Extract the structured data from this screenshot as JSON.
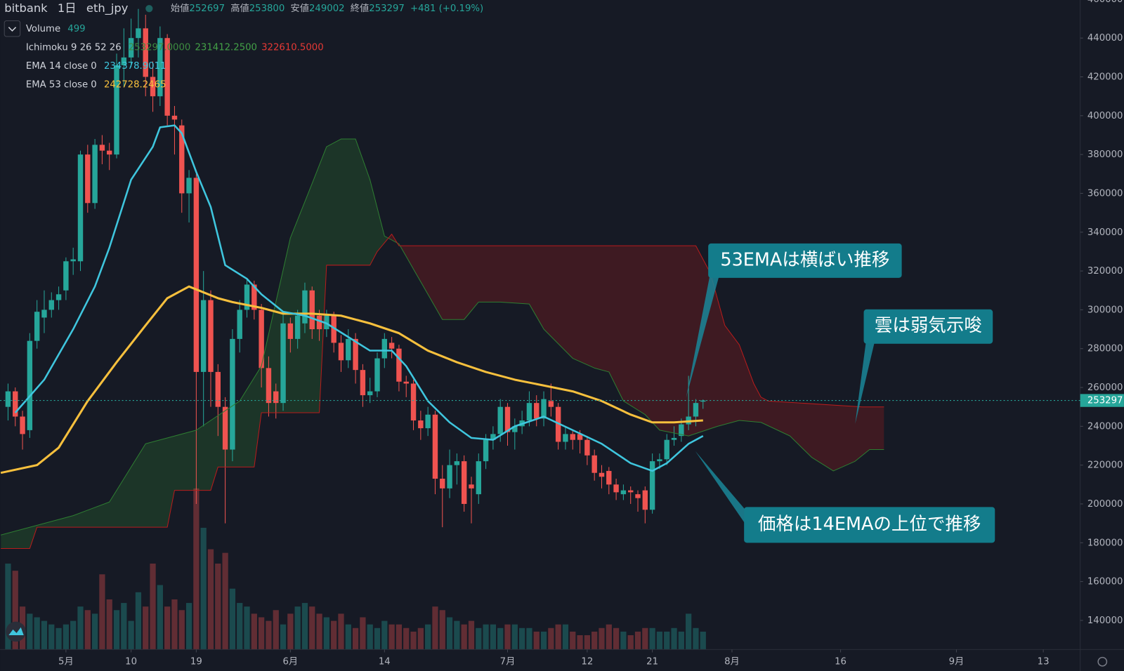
{
  "chart_data": {
    "type": "candlestick",
    "header": {
      "symbol": "bitbank",
      "interval": "1日",
      "pair": "eth_jpy",
      "open_label": "始値",
      "high_label": "高値",
      "low_label": "安値",
      "close_label": "終値",
      "change": "+481 (+0.19%)"
    },
    "legend": {
      "volume": "Volume",
      "ichimoku": "Ichimoku 9 26 52 26",
      "ichimoku_values": [
        "253297.0000",
        "231412.2500",
        "322610.5000"
      ],
      "ema14": "EMA 14 close 0",
      "ema14_value": "234378.9011",
      "ema53": "EMA 53 close 0",
      "ema53_value": "242728.2465"
    },
    "categories": [
      null,
      null,
      null,
      null,
      null,
      null,
      null,
      null,
      null,
      null,
      null,
      null,
      null,
      null,
      null,
      null,
      null,
      null,
      null,
      null,
      null,
      null,
      null,
      null,
      null,
      null,
      null,
      null,
      null,
      null,
      null,
      null,
      null,
      null,
      null,
      null,
      null,
      null,
      null,
      null,
      null,
      null,
      null,
      null,
      null,
      null,
      null,
      null,
      null,
      null,
      null,
      null,
      null,
      null,
      null,
      null,
      null,
      null,
      null,
      null,
      null,
      null,
      null,
      null,
      null,
      null,
      null,
      null,
      null,
      null,
      null,
      null,
      null,
      null,
      null,
      null,
      null,
      null,
      null,
      null,
      null,
      null,
      null,
      null,
      null,
      null,
      null,
      null,
      null,
      null,
      null,
      null,
      null,
      null,
      null,
      null,
      null
    ],
    "open": [
      250000,
      258000,
      245000,
      238000,
      284000,
      296000,
      300000,
      305000,
      310000,
      325000,
      325000,
      380000,
      355000,
      385000,
      382000,
      380000,
      426000,
      430000,
      440000,
      445000,
      420000,
      410000,
      440000,
      400000,
      395000,
      360000,
      368000,
      268000,
      305000,
      268000,
      250000,
      228000,
      285000,
      300000,
      313000,
      300000,
      270000,
      258000,
      252000,
      293000,
      285000,
      293000,
      310000,
      297000,
      290000,
      297000,
      283000,
      274000,
      285000,
      269000,
      256000,
      258000,
      275000,
      283000,
      280000,
      263000,
      262000,
      243000,
      239000,
      246000,
      213000,
      208000,
      220000,
      222000,
      210000,
      205000,
      222000,
      233000,
      236000,
      250000,
      237000,
      240000,
      243000,
      252000,
      244000,
      253000,
      250000,
      232000,
      236000,
      236000,
      233000,
      225000,
      216000,
      217000,
      210000,
      205000,
      207000,
      205000,
      207000,
      197000,
      222000,
      223000,
      233000,
      235000,
      241000,
      245000,
      252697
    ],
    "high": [
      262000,
      260000,
      248000,
      288000,
      305000,
      310000,
      309000,
      312000,
      327000,
      332000,
      382000,
      385000,
      388000,
      390000,
      386000,
      432000,
      445000,
      450000,
      455000,
      452000,
      428000,
      446000,
      442000,
      405000,
      398000,
      372000,
      370000,
      320000,
      310000,
      272000,
      255000,
      290000,
      305000,
      316000,
      315000,
      303000,
      276000,
      262000,
      298000,
      296000,
      300000,
      314000,
      312000,
      300000,
      300000,
      299000,
      287000,
      290000,
      288000,
      272000,
      265000,
      278000,
      288000,
      286000,
      282000,
      266000,
      264000,
      248000,
      250000,
      248000,
      220000,
      228000,
      226000,
      225000,
      214000,
      226000,
      236000,
      240000,
      254000,
      252000,
      244000,
      248000,
      258000,
      256000,
      258000,
      262000,
      252000,
      240000,
      238000,
      238000,
      235000,
      228000,
      220000,
      219000,
      213000,
      210000,
      209000,
      207000,
      209000,
      226000,
      226000,
      236000,
      240000,
      244000,
      266000,
      254000,
      253800
    ],
    "low": [
      243000,
      240000,
      228000,
      234000,
      280000,
      288000,
      296000,
      300000,
      305000,
      318000,
      320000,
      350000,
      352000,
      375000,
      372000,
      378000,
      415000,
      425000,
      430000,
      410000,
      402000,
      405000,
      395000,
      380000,
      350000,
      345000,
      200000,
      240000,
      250000,
      235000,
      190000,
      222000,
      278000,
      296000,
      295000,
      260000,
      245000,
      244000,
      248000,
      278000,
      280000,
      288000,
      285000,
      284000,
      286000,
      278000,
      268000,
      270000,
      262000,
      250000,
      252000,
      255000,
      270000,
      275000,
      258000,
      255000,
      238000,
      233000,
      235000,
      205000,
      188000,
      203000,
      210000,
      196000,
      190000,
      200000,
      218000,
      228000,
      232000,
      230000,
      228000,
      236000,
      240000,
      240000,
      240000,
      245000,
      228000,
      228000,
      228000,
      226000,
      220000,
      212000,
      208000,
      205000,
      202000,
      202000,
      200000,
      196000,
      190000,
      195000,
      218000,
      220000,
      230000,
      232000,
      238000,
      240000,
      249002
    ],
    "close": [
      258000,
      245000,
      236000,
      284000,
      299000,
      300000,
      305000,
      308000,
      325000,
      326000,
      380000,
      355000,
      385000,
      382000,
      380000,
      426000,
      430000,
      440000,
      445000,
      420000,
      410000,
      440000,
      400000,
      398000,
      360000,
      368000,
      268000,
      305000,
      268000,
      250000,
      228000,
      285000,
      300000,
      313000,
      300000,
      270000,
      252000,
      252000,
      293000,
      285000,
      297000,
      310000,
      290000,
      290000,
      298000,
      283000,
      274000,
      285000,
      269000,
      256000,
      258000,
      275000,
      285000,
      280000,
      263000,
      262000,
      243000,
      239000,
      246000,
      213000,
      208000,
      220000,
      222000,
      200000,
      208000,
      222000,
      233000,
      236000,
      250000,
      237000,
      240000,
      243000,
      252000,
      244000,
      254000,
      250000,
      232000,
      236000,
      233000,
      233000,
      225000,
      216000,
      214000,
      210000,
      206000,
      207000,
      206000,
      203000,
      197000,
      222000,
      223000,
      233000,
      234000,
      241000,
      245000,
      252000,
      253297
    ],
    "volume": [
      2400,
      2200,
      1200,
      1000,
      900,
      800,
      700,
      600,
      700,
      800,
      1200,
      1100,
      1000,
      2100,
      1400,
      1100,
      1300,
      800,
      1600,
      1200,
      2400,
      1800,
      1200,
      1400,
      1100,
      1300,
      4500,
      3400,
      2800,
      2400,
      2700,
      1700,
      1300,
      1200,
      1000,
      900,
      800,
      1100,
      700,
      1000,
      1200,
      1300,
      1200,
      1000,
      900,
      800,
      1000,
      700,
      600,
      900,
      700,
      600,
      800,
      700,
      700,
      600,
      500,
      600,
      700,
      1200,
      1100,
      900,
      800,
      700,
      800,
      600,
      700,
      700,
      600,
      700,
      700,
      600,
      600,
      500,
      500,
      600,
      700,
      700,
      500,
      400,
      400,
      500,
      600,
      700,
      600,
      500,
      400,
      500,
      600,
      600,
      500,
      500,
      600,
      500,
      1000,
      600,
      499
    ],
    "colors": {
      "up": "#26a69a",
      "down": "#ef5350"
    },
    "ema14": {
      "color": "#3fc6de",
      "x": [
        1,
        5,
        9,
        12,
        14,
        17,
        20,
        21,
        23,
        24,
        26,
        28,
        30,
        33,
        35,
        38,
        41,
        44,
        47,
        50,
        53,
        55,
        58,
        61,
        64,
        67,
        70,
        74,
        78,
        82,
        86,
        89,
        91,
        94,
        96
      ],
      "values": [
        247000,
        264000,
        290000,
        312000,
        332000,
        367000,
        384000,
        394000,
        395000,
        391000,
        371000,
        353000,
        323000,
        316000,
        308000,
        299000,
        297000,
        293000,
        286000,
        279000,
        279000,
        271000,
        253000,
        242000,
        234000,
        233000,
        240000,
        245000,
        238000,
        231000,
        221000,
        217000,
        221000,
        231000,
        235000
      ]
    },
    "ema53": {
      "color": "#f7c03d",
      "x": [
        -1,
        4,
        7,
        11,
        15,
        19,
        22,
        25,
        29,
        31,
        35,
        38,
        42,
        46,
        50,
        54,
        58,
        62,
        66,
        70,
        74,
        78,
        82,
        86,
        89,
        92,
        96
      ],
      "values": [
        216000,
        220000,
        229000,
        253000,
        273000,
        292000,
        306000,
        312000,
        306000,
        304000,
        301000,
        298000,
        298000,
        297000,
        293000,
        288000,
        279000,
        273000,
        268000,
        264000,
        261000,
        258000,
        253000,
        246000,
        242000,
        242000,
        243000
      ]
    },
    "span_a": {
      "color": "#2e7d32",
      "x": [
        -1,
        9,
        14,
        19,
        26,
        32,
        35,
        39,
        42,
        44,
        46,
        48,
        50,
        52,
        54,
        56,
        58,
        60,
        63,
        65,
        68,
        72,
        74,
        78,
        81,
        83,
        85,
        88,
        90,
        94,
        98,
        101,
        104,
        108,
        111,
        114,
        117,
        119,
        121
      ],
      "values": [
        184000,
        194000,
        201000,
        231000,
        238000,
        253000,
        271000,
        337000,
        365000,
        384000,
        388000,
        388000,
        367000,
        338000,
        334000,
        321000,
        308000,
        295000,
        295000,
        304000,
        304000,
        303000,
        290000,
        275000,
        270000,
        268000,
        253000,
        246000,
        238000,
        235000,
        240000,
        243000,
        242000,
        235000,
        224000,
        217000,
        222000,
        228000,
        228000
      ]
    },
    "span_b": {
      "color": "#b71c1c",
      "x": [
        -1,
        3,
        4,
        14,
        22,
        23,
        28,
        29,
        34,
        35,
        43,
        44,
        50,
        51,
        53,
        54,
        95,
        97,
        99,
        101,
        103,
        104,
        105,
        118,
        121
      ],
      "values": [
        177000,
        177000,
        188000,
        188000,
        188000,
        207000,
        207000,
        219000,
        219000,
        247000,
        247000,
        323000,
        323000,
        330000,
        339000,
        333000,
        333000,
        319000,
        292000,
        282000,
        262000,
        255000,
        253000,
        250000,
        250000
      ]
    },
    "xlim": [
      -1.1,
      148.1
    ],
    "xticks": [
      {
        "value": 8,
        "label": "5月"
      },
      {
        "value": 17,
        "label": "10"
      },
      {
        "value": 26,
        "label": "19"
      },
      {
        "value": 39,
        "label": "6月"
      },
      {
        "value": 52,
        "label": "14"
      },
      {
        "value": 69,
        "label": "7月"
      },
      {
        "value": 80,
        "label": "12"
      },
      {
        "value": 89,
        "label": "21"
      },
      {
        "value": 100,
        "label": "8月"
      },
      {
        "value": 115,
        "label": "16"
      },
      {
        "value": 131,
        "label": "9月"
      },
      {
        "value": 143,
        "label": "13"
      }
    ],
    "ylim": [
      125000,
      459600
    ],
    "yticks": [
      140000,
      160000,
      180000,
      200000,
      220000,
      240000,
      260000,
      280000,
      300000,
      320000,
      340000,
      360000,
      380000,
      400000,
      420000,
      440000,
      460000
    ],
    "annotations": [
      "53EMAは横ばい推移",
      "雲は弱気示唆",
      "価格は14EMAの上位で推移"
    ]
  }
}
